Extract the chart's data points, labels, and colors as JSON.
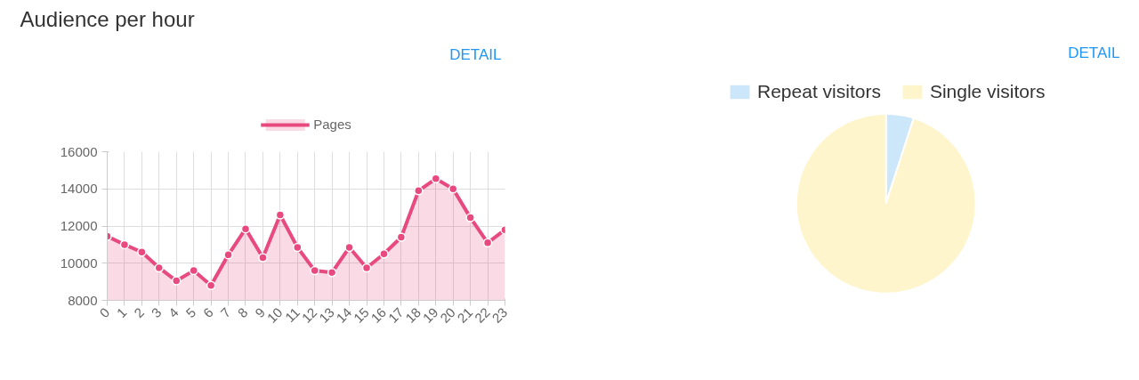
{
  "chart_data": [
    {
      "type": "area",
      "title": "Audience per hour",
      "annotations": [
        "DETAIL"
      ],
      "categories": [
        "0",
        "1",
        "2",
        "3",
        "4",
        "5",
        "6",
        "7",
        "8",
        "9",
        "10",
        "11",
        "12",
        "13",
        "14",
        "15",
        "16",
        "17",
        "18",
        "19",
        "20",
        "21",
        "22",
        "23"
      ],
      "series": [
        {
          "name": "Pages",
          "color": "#e8497f",
          "values": [
            11450,
            11000,
            10600,
            9750,
            9050,
            9600,
            8800,
            10450,
            11850,
            10300,
            12600,
            10850,
            9600,
            9500,
            10850,
            9750,
            10500,
            11400,
            13900,
            14550,
            14000,
            12450,
            11100,
            11800
          ]
        }
      ],
      "ylim": [
        8000,
        16000
      ],
      "yticks": [
        8000,
        10000,
        12000,
        14000,
        16000
      ],
      "grid": true,
      "legend": "top",
      "marker": "circle",
      "line_style": "solid"
    },
    {
      "type": "pie",
      "annotations": [
        "DETAIL"
      ],
      "categories": [
        "Repeat visitors",
        "Single visitors"
      ],
      "values": [
        5,
        95
      ],
      "colors": [
        "#cce6fa",
        "#fff5cc"
      ],
      "legend": "top"
    }
  ]
}
